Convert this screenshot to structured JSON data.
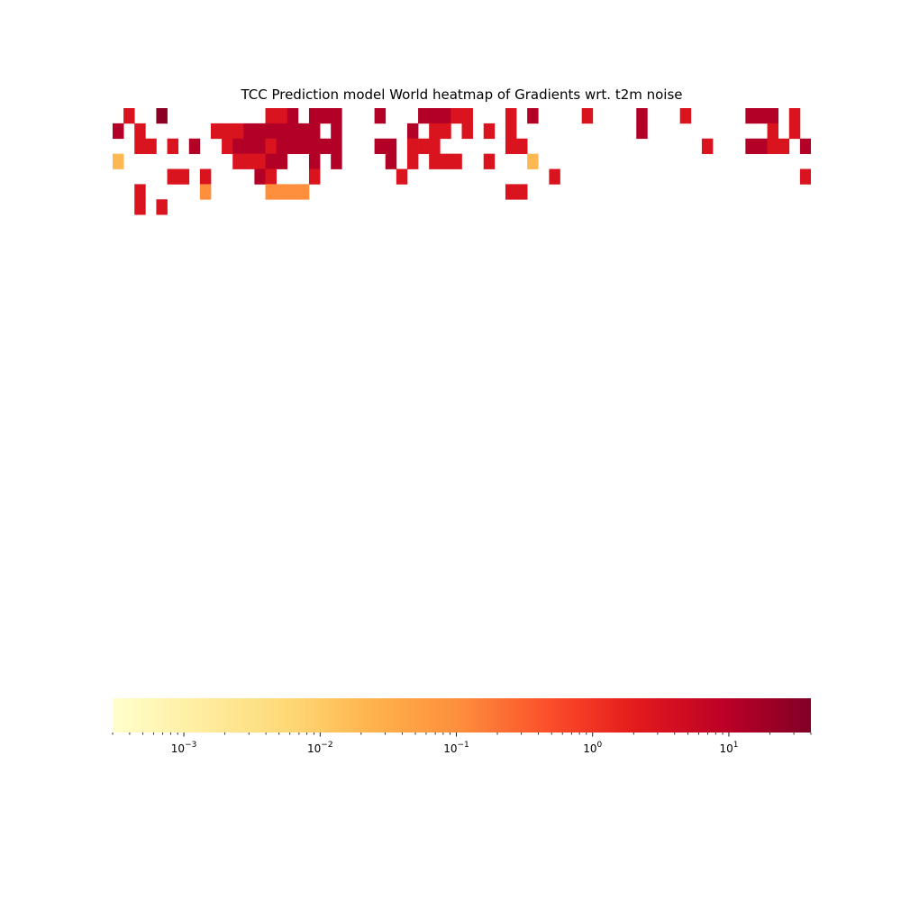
{
  "chart_data": {
    "type": "heatmap",
    "title": "TCC Prediction model World heatmap of Gradients wrt. t2m noise",
    "xlabel": "",
    "ylabel": "",
    "scale": "log",
    "colormap": "YlOrRd",
    "empty_cell_color": "#ffffff",
    "colorbar": {
      "orientation": "horizontal",
      "range": [
        0.0003,
        40
      ],
      "ticks": [
        {
          "value": 0.001,
          "base": "10",
          "exponent": "−3"
        },
        {
          "value": 0.01,
          "base": "10",
          "exponent": "−2"
        },
        {
          "value": 0.1,
          "base": "10",
          "exponent": "−1"
        },
        {
          "value": 1,
          "base": "10",
          "exponent": "0"
        },
        {
          "value": 10,
          "base": "10",
          "exponent": "1"
        }
      ]
    },
    "rows": 32,
    "cols": 64,
    "code_key": {
      "0": null,
      "1": 0.02,
      "2": 0.1,
      "3": 0.8,
      "4": 3,
      "5": 12,
      "6": 30
    },
    "grid_codes": [
      "0400600000000044505550005000555440004050000400005000400000555040",
      "5040000004445555555050000005044040404000000000005000000000004040",
      "0044040500455545555550005504440000004400000000000000004000554405",
      "1000000000044455005050000504044400400010000000000000000000000000",
      "0000044040000540004000000040000000000000400000000000000000000004",
      "0040000020000022220000000000000000004400000000000000000000000000",
      "0040400000000000000000000000000000000000000000000000000000000000",
      "0000000000000000000000000000000000000000000000000000000000000000",
      "0000000000000000000000000000000000000000000000000000000000000000",
      "0000000000000000000000000000000000000000000000000000000000000000",
      "0000000000000000000000000000000000000000000000000000000000000000",
      "0000000000000000000000000000000000000000000000000000000000000000",
      "0000000000000000000000000000000000000000000000000000000000000000",
      "0000000000000000000000000000000000000000000000000000000000000000",
      "0000000000000000000000000000000000000000000000000000000000000000",
      "0000000000000000000000000000000000000000000000000000000000000000",
      "0000000000000000000000000000000000000000000000000000000000000000",
      "0000000000000000000000000000000000000000000000000000000000000000",
      "0000000000000000000000000000000000000000000000000000000000000000",
      "0000000000000000000000000000000000000000000000000000000000000000",
      "0000000000000000000000000000000000000000000000000000000000000000",
      "0000000000000000000000000000000000000000000000000000000000000000",
      "0000000000000000000000000000000000000000000000000000000000000000",
      "0000000000000000000000000000000000000000000000000000000000000000",
      "0000000000000000000000000000000000000000000000000000000000000000",
      "0000000000000000000000000000000000000000000000000000000000000000",
      "0000000000000000000000000000000000000000000000000000000000000000",
      "0000000000000000000000000000000000000000000000000000000000000000",
      "0000000000000000000000000000000000000000000000000000000000000000",
      "0000000000000000000000000000000000000000000000000000000000000000",
      "0000000000000000000000000000000000000000000000000000000000000000",
      "0000000000000000000000000000000000000000000000000000000000000000"
    ]
  }
}
